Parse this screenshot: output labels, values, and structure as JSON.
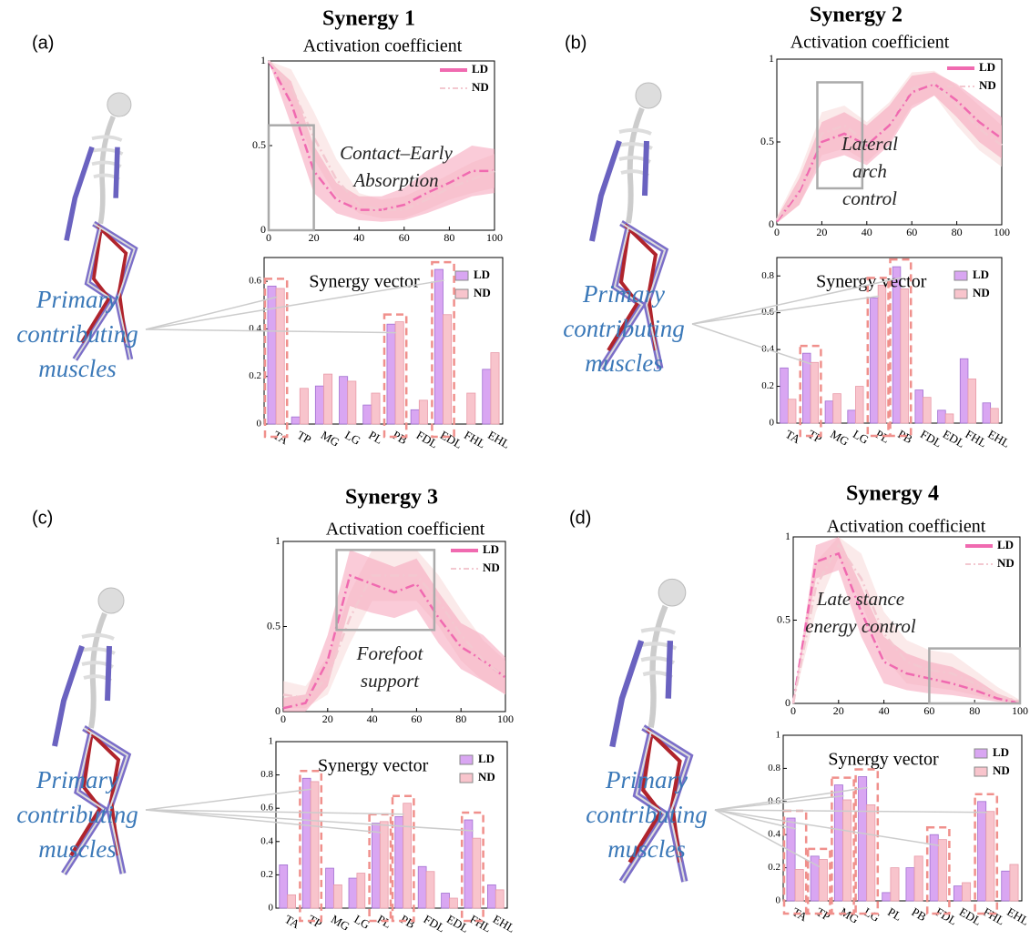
{
  "chart_data": [
    {
      "type": "line",
      "panel": "(a)",
      "title": "Synergy 1",
      "subtitle": "Activation coefficient",
      "annotation": [
        "Contact–Early",
        "Absorption"
      ],
      "x": [
        0,
        10,
        20,
        30,
        40,
        50,
        60,
        70,
        80,
        90,
        100
      ],
      "xlim": [
        0,
        100
      ],
      "xticks": [
        0,
        20,
        40,
        60,
        80,
        100
      ],
      "ylim": [
        0,
        1
      ],
      "yticks": [
        0,
        0.5,
        1.0
      ],
      "series": [
        {
          "name": "LD",
          "color": "#f06ab0",
          "band_color": "#f5a0b8",
          "values": [
            1.0,
            0.75,
            0.35,
            0.18,
            0.12,
            0.12,
            0.15,
            0.22,
            0.28,
            0.35,
            0.35
          ],
          "lower": [
            1.0,
            0.62,
            0.22,
            0.1,
            0.06,
            0.05,
            0.06,
            0.1,
            0.15,
            0.2,
            0.22
          ],
          "upper": [
            1.0,
            0.88,
            0.5,
            0.28,
            0.2,
            0.2,
            0.25,
            0.35,
            0.42,
            0.5,
            0.48
          ]
        },
        {
          "name": "ND",
          "color": "#f3c8d0",
          "band_color": "#f8d8d8",
          "values": [
            1.0,
            0.85,
            0.55,
            0.3,
            0.15,
            0.12,
            0.12,
            0.18,
            0.25,
            0.3,
            0.35
          ],
          "lower": [
            1.0,
            0.75,
            0.42,
            0.2,
            0.1,
            0.07,
            0.07,
            0.12,
            0.18,
            0.22,
            0.25
          ],
          "upper": [
            1.0,
            0.95,
            0.7,
            0.42,
            0.22,
            0.18,
            0.2,
            0.26,
            0.33,
            0.4,
            0.45
          ]
        }
      ]
    },
    {
      "type": "bar",
      "title": "Synergy vector",
      "annotation": [
        "Primary",
        "contributing",
        "muscles"
      ],
      "categories": [
        "TA",
        "TP",
        "MG",
        "LG",
        "PL",
        "PB",
        "FDL",
        "EDL",
        "FHL",
        "EHL"
      ],
      "ylim": [
        0,
        0.7
      ],
      "yticks": [
        0,
        0.2,
        0.4,
        0.6
      ],
      "series": [
        {
          "name": "LD",
          "color": "#d9a6f2",
          "values": [
            0.58,
            0.03,
            0.16,
            0.2,
            0.08,
            0.42,
            0.06,
            0.65,
            0,
            0.23
          ]
        },
        {
          "name": "ND",
          "color": "#f8c4cc",
          "values": [
            0.57,
            0.15,
            0.21,
            0.18,
            0.13,
            0.43,
            0.1,
            0.46,
            0.13,
            0.3
          ]
        }
      ]
    },
    {
      "type": "line",
      "panel": "(b)",
      "title": "Synergy 2",
      "subtitle": "Activation coefficient",
      "annotation": [
        "Lateral",
        "arch",
        "control"
      ],
      "x": [
        0,
        10,
        20,
        30,
        40,
        50,
        60,
        70,
        80,
        90,
        100
      ],
      "xlim": [
        0,
        100
      ],
      "xticks": [
        0,
        20,
        40,
        60,
        80,
        100
      ],
      "ylim": [
        0,
        1
      ],
      "yticks": [
        0,
        0.5,
        1.0
      ],
      "series": [
        {
          "name": "LD",
          "color": "#f06ab0",
          "band_color": "#f5a0b8",
          "values": [
            0.02,
            0.2,
            0.5,
            0.55,
            0.48,
            0.6,
            0.8,
            0.85,
            0.75,
            0.62,
            0.52
          ],
          "lower": [
            0.01,
            0.12,
            0.38,
            0.42,
            0.36,
            0.48,
            0.7,
            0.78,
            0.65,
            0.5,
            0.4
          ],
          "upper": [
            0.04,
            0.28,
            0.62,
            0.68,
            0.6,
            0.72,
            0.9,
            0.92,
            0.85,
            0.75,
            0.65
          ]
        },
        {
          "name": "ND",
          "color": "#f3c8d0",
          "band_color": "#f8d8d8",
          "values": [
            0.03,
            0.22,
            0.55,
            0.6,
            0.5,
            0.62,
            0.82,
            0.86,
            0.72,
            0.58,
            0.48
          ],
          "lower": [
            0.01,
            0.12,
            0.42,
            0.46,
            0.38,
            0.5,
            0.72,
            0.78,
            0.6,
            0.45,
            0.35
          ],
          "upper": [
            0.05,
            0.32,
            0.68,
            0.72,
            0.62,
            0.74,
            0.92,
            0.93,
            0.84,
            0.72,
            0.6
          ]
        }
      ]
    },
    {
      "type": "bar",
      "title": "Synergy vector",
      "annotation": [
        "Primary",
        "contributing",
        "muscles"
      ],
      "categories": [
        "TA",
        "TP",
        "MG",
        "LG",
        "PL",
        "PB",
        "FDL",
        "EDL",
        "FHL",
        "EHL"
      ],
      "ylim": [
        0,
        0.9
      ],
      "yticks": [
        0,
        0.2,
        0.4,
        0.6,
        0.8
      ],
      "series": [
        {
          "name": "LD",
          "color": "#d9a6f2",
          "values": [
            0.3,
            0.38,
            0.12,
            0.07,
            0.68,
            0.85,
            0.18,
            0.07,
            0.35,
            0.11
          ]
        },
        {
          "name": "ND",
          "color": "#f8c4cc",
          "values": [
            0.13,
            0.33,
            0.16,
            0.2,
            0.75,
            0.73,
            0.14,
            0.05,
            0.24,
            0.08
          ]
        }
      ]
    },
    {
      "type": "line",
      "panel": "(c)",
      "title": "Synergy 3",
      "subtitle": "Activation coefficient",
      "annotation": [
        "Forefoot",
        "support"
      ],
      "x": [
        0,
        10,
        20,
        30,
        40,
        50,
        60,
        70,
        80,
        90,
        100
      ],
      "xlim": [
        0,
        100
      ],
      "xticks": [
        0,
        20,
        40,
        60,
        80,
        100
      ],
      "ylim": [
        0,
        1
      ],
      "yticks": [
        0,
        0.5,
        1.0
      ],
      "series": [
        {
          "name": "LD",
          "color": "#f06ab0",
          "band_color": "#f5a0b8",
          "values": [
            0.02,
            0.05,
            0.3,
            0.8,
            0.75,
            0.7,
            0.75,
            0.55,
            0.38,
            0.3,
            0.2
          ],
          "lower": [
            0,
            0,
            0.15,
            0.62,
            0.58,
            0.55,
            0.6,
            0.4,
            0.25,
            0.18,
            0.1
          ],
          "upper": [
            0.08,
            0.1,
            0.45,
            0.95,
            0.9,
            0.85,
            0.9,
            0.7,
            0.52,
            0.45,
            0.32
          ]
        },
        {
          "name": "ND",
          "color": "#f3c8d0",
          "band_color": "#f8d8d8",
          "values": [
            0.1,
            0.08,
            0.2,
            0.55,
            0.8,
            0.8,
            0.8,
            0.65,
            0.45,
            0.3,
            0.2
          ],
          "lower": [
            0.02,
            0.02,
            0.1,
            0.4,
            0.65,
            0.65,
            0.65,
            0.5,
            0.3,
            0.18,
            0.1
          ],
          "upper": [
            0.18,
            0.15,
            0.32,
            0.7,
            0.95,
            0.95,
            0.95,
            0.8,
            0.6,
            0.42,
            0.3
          ]
        }
      ]
    },
    {
      "type": "bar",
      "title": "Synergy vector",
      "annotation": [
        "Primary",
        "contributing",
        "muscles"
      ],
      "categories": [
        "TA",
        "TP",
        "MG",
        "LG",
        "PL",
        "PB",
        "FDL",
        "EDL",
        "FHL",
        "EHL"
      ],
      "ylim": [
        0,
        1
      ],
      "yticks": [
        0,
        0.2,
        0.4,
        0.6,
        0.8,
        1.0
      ],
      "series": [
        {
          "name": "LD",
          "color": "#d9a6f2",
          "values": [
            0.26,
            0.78,
            0.24,
            0.18,
            0.51,
            0.55,
            0.25,
            0.09,
            0.53,
            0.14
          ]
        },
        {
          "name": "ND",
          "color": "#f8c4cc",
          "values": [
            0.08,
            0.76,
            0.14,
            0.21,
            0.52,
            0.63,
            0.22,
            0.06,
            0.42,
            0.11
          ]
        }
      ]
    },
    {
      "type": "line",
      "panel": "(d)",
      "title": "Synergy 4",
      "subtitle": "Activation coefficient",
      "annotation": [
        "Late stance",
        "energy control"
      ],
      "x": [
        0,
        10,
        20,
        30,
        40,
        50,
        60,
        70,
        80,
        90,
        100
      ],
      "xlim": [
        0,
        100
      ],
      "xticks": [
        0,
        20,
        40,
        60,
        80,
        100
      ],
      "ylim": [
        0,
        1
      ],
      "yticks": [
        0,
        0.5,
        1.0
      ],
      "series": [
        {
          "name": "LD",
          "color": "#f06ab0",
          "band_color": "#f5a0b8",
          "values": [
            0,
            0.85,
            0.9,
            0.55,
            0.25,
            0.18,
            0.15,
            0.12,
            0.08,
            0.03,
            0
          ],
          "lower": [
            0,
            0.75,
            0.8,
            0.4,
            0.12,
            0.08,
            0.06,
            0.05,
            0.03,
            0.01,
            0
          ],
          "upper": [
            0,
            0.95,
            1.0,
            0.7,
            0.4,
            0.3,
            0.25,
            0.22,
            0.15,
            0.06,
            0.01
          ]
        },
        {
          "name": "ND",
          "color": "#f3c8d0",
          "band_color": "#f8d8d8",
          "values": [
            0,
            0.7,
            0.95,
            0.75,
            0.42,
            0.25,
            0.2,
            0.18,
            0.12,
            0.05,
            0.01
          ],
          "lower": [
            0,
            0.55,
            0.88,
            0.6,
            0.28,
            0.12,
            0.1,
            0.08,
            0.05,
            0.02,
            0
          ],
          "upper": [
            0.02,
            0.85,
            1.0,
            0.9,
            0.55,
            0.38,
            0.32,
            0.3,
            0.2,
            0.1,
            0.02
          ]
        }
      ]
    },
    {
      "type": "bar",
      "title": "Synergy vector",
      "annotation": [
        "Primary",
        "contributing",
        "muscles"
      ],
      "categories": [
        "TA",
        "TP",
        "MG",
        "LG",
        "PL",
        "PB",
        "FDL",
        "EDL",
        "FHL",
        "EHL"
      ],
      "ylim": [
        0,
        1
      ],
      "yticks": [
        0,
        0.2,
        0.4,
        0.6,
        0.8,
        1.0
      ],
      "series": [
        {
          "name": "LD",
          "color": "#d9a6f2",
          "values": [
            0.5,
            0.27,
            0.7,
            0.75,
            0.05,
            0.2,
            0.4,
            0.09,
            0.6,
            0.18
          ]
        },
        {
          "name": "ND",
          "color": "#f8c4cc",
          "values": [
            0.19,
            0.25,
            0.61,
            0.58,
            0.2,
            0.27,
            0.37,
            0.11,
            0.54,
            0.22
          ]
        }
      ]
    }
  ]
}
